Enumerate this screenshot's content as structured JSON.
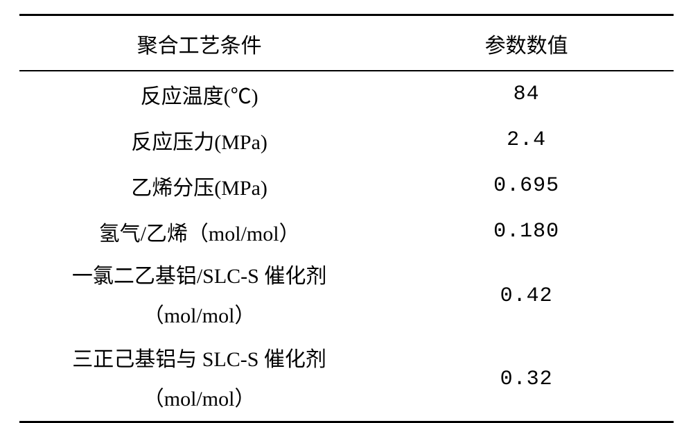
{
  "table": {
    "header_fontsize": 30,
    "body_fontsize": 30,
    "col1_width_pct": 55,
    "col2_width_pct": 45,
    "row_single_height": 66,
    "row_double_height": 120,
    "border_color": "#000000",
    "text_color": "#000000",
    "background_color": "#ffffff",
    "columns": [
      "聚合工艺条件",
      "参数数值"
    ],
    "rows": [
      {
        "label": "反应温度(℃)",
        "value": "84",
        "multiline": false
      },
      {
        "label": "反应压力(MPa)",
        "value": "2.4",
        "multiline": false
      },
      {
        "label": "乙烯分压(MPa)",
        "value": "0.695",
        "multiline": false
      },
      {
        "label": "氢气/乙烯（mol/mol）",
        "value": "0.180",
        "multiline": false
      },
      {
        "label": "一氯二乙基铝/SLC-S 催化剂",
        "label2": "（mol/mol）",
        "value": "0.42",
        "multiline": true
      },
      {
        "label": "三正己基铝与 SLC-S 催化剂",
        "label2": "（mol/mol）",
        "value": "0.32",
        "multiline": true
      }
    ]
  }
}
